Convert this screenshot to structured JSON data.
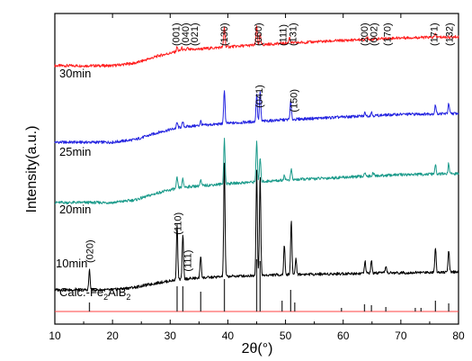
{
  "chart_data": {
    "type": "line",
    "title": "",
    "xlabel": "2θ(°)",
    "ylabel": "Intensity(a.u.)",
    "xlim": [
      10,
      80
    ],
    "x_ticks": [
      "10",
      "20",
      "30",
      "40",
      "50",
      "60",
      "70",
      "80"
    ],
    "y_ticks_shown": false,
    "grid": false,
    "legend": "none",
    "series": [
      {
        "name": "30min",
        "color": "#ff2020",
        "baseline_profile": [
          [
            10,
            30
          ],
          [
            20,
            30
          ],
          [
            24,
            33
          ],
          [
            28,
            41
          ],
          [
            32,
            47
          ],
          [
            40,
            51
          ],
          [
            50,
            55
          ],
          [
            60,
            58
          ],
          [
            70,
            61
          ],
          [
            80,
            62
          ]
        ],
        "peaks": [
          [
            31.2,
            5
          ],
          [
            32,
            3
          ],
          [
            33,
            2
          ],
          [
            39.4,
            23
          ],
          [
            45,
            21
          ],
          [
            45.6,
            11
          ],
          [
            50.7,
            7
          ],
          [
            64.2,
            3
          ],
          [
            76,
            4
          ]
        ],
        "peak_labels": [
          {
            "text": "(001)",
            "x": 31.0
          },
          {
            "text": "(040)",
            "x": 32.6
          },
          {
            "text": "(021)",
            "x": 34.2
          },
          {
            "text": "(130)",
            "x": 39.3
          },
          {
            "text": "(060)",
            "x": 45.2
          },
          {
            "text": "(111)",
            "x": 49.5
          },
          {
            "text": "(131)",
            "x": 51.2
          },
          {
            "text": "(200)",
            "x": 63.6
          },
          {
            "text": "(002)",
            "x": 65.3
          },
          {
            "text": "(170)",
            "x": 67.6
          },
          {
            "text": "(171)",
            "x": 75.7
          },
          {
            "text": "(132)",
            "x": 78.4
          }
        ]
      },
      {
        "name": "25min",
        "color": "#2424e0",
        "baseline_profile": [
          [
            10,
            30
          ],
          [
            20,
            30
          ],
          [
            24,
            33
          ],
          [
            28,
            41
          ],
          [
            32,
            47
          ],
          [
            40,
            51
          ],
          [
            50,
            55
          ],
          [
            60,
            58
          ],
          [
            70,
            61
          ],
          [
            80,
            62
          ]
        ],
        "peaks": [
          [
            31.2,
            6
          ],
          [
            32.2,
            5
          ],
          [
            35.3,
            5
          ],
          [
            39.4,
            38
          ],
          [
            45,
            31
          ],
          [
            45.6,
            33
          ],
          [
            50.9,
            20
          ],
          [
            63.8,
            4
          ],
          [
            64.9,
            4
          ],
          [
            76,
            10
          ],
          [
            78.3,
            11
          ]
        ],
        "peak_labels": [
          {
            "text": "(041)",
            "x": 45.4
          },
          {
            "text": "(150)",
            "x": 51.4
          }
        ]
      },
      {
        "name": "20min",
        "color": "#1a9a8a",
        "baseline_profile": [
          [
            10,
            30
          ],
          [
            20,
            30
          ],
          [
            24,
            33
          ],
          [
            28,
            41
          ],
          [
            32,
            47
          ],
          [
            40,
            51
          ],
          [
            50,
            55
          ],
          [
            60,
            58
          ],
          [
            70,
            61
          ],
          [
            80,
            62
          ]
        ],
        "peaks": [
          [
            31.2,
            12
          ],
          [
            32.2,
            9
          ],
          [
            35.3,
            6
          ],
          [
            39.4,
            50
          ],
          [
            45,
            46
          ],
          [
            45.6,
            26
          ],
          [
            49.8,
            6
          ],
          [
            51,
            12
          ],
          [
            63.8,
            5
          ],
          [
            65.2,
            4
          ],
          [
            76,
            10
          ],
          [
            78.3,
            12
          ]
        ],
        "peak_labels": []
      },
      {
        "name": "10min",
        "color": "#000000",
        "baseline_profile": [
          [
            10,
            30
          ],
          [
            20,
            30
          ],
          [
            24,
            33
          ],
          [
            28,
            38
          ],
          [
            32,
            42
          ],
          [
            40,
            45
          ],
          [
            50,
            47
          ],
          [
            60,
            48
          ],
          [
            70,
            49
          ],
          [
            80,
            50
          ]
        ],
        "peaks": [
          [
            16,
            22
          ],
          [
            31.2,
            62
          ],
          [
            32.2,
            50
          ],
          [
            35.3,
            25
          ],
          [
            39.4,
            125
          ],
          [
            45,
            118
          ],
          [
            45.6,
            112
          ],
          [
            49.8,
            33
          ],
          [
            51,
            60
          ],
          [
            51.8,
            18
          ],
          [
            63.8,
            13
          ],
          [
            64.9,
            14
          ],
          [
            67.4,
            8
          ],
          [
            76,
            28
          ],
          [
            78.3,
            24
          ]
        ],
        "peak_labels": [
          {
            "text": "(020)",
            "x": 16.0
          },
          {
            "text": "(110)",
            "x": 31.3
          },
          {
            "text": "(111)",
            "x": 33.0
          }
        ]
      },
      {
        "name": "Calc.-Fe2AlB2",
        "name_main": "Calc.-Fe",
        "name_sub1": "2",
        "name_mid": "AlB",
        "name_sub2": "2",
        "color": "#ff4040",
        "stick_color": "#303030",
        "sticks": [
          [
            16,
            10
          ],
          [
            31.2,
            28
          ],
          [
            32.2,
            28
          ],
          [
            35.3,
            22
          ],
          [
            39.4,
            36
          ],
          [
            45,
            58
          ],
          [
            45.6,
            56
          ],
          [
            49.4,
            12
          ],
          [
            50.9,
            24
          ],
          [
            51.6,
            10
          ],
          [
            59.7,
            4
          ],
          [
            63.7,
            8
          ],
          [
            64.9,
            7
          ],
          [
            67.4,
            5
          ],
          [
            72.5,
            4
          ],
          [
            73.5,
            4
          ],
          [
            76,
            12
          ],
          [
            78.3,
            9
          ]
        ]
      }
    ]
  }
}
